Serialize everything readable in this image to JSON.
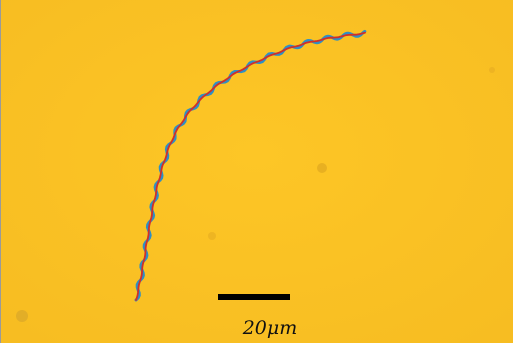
{
  "scale_bar": {
    "label": "20μm"
  }
}
